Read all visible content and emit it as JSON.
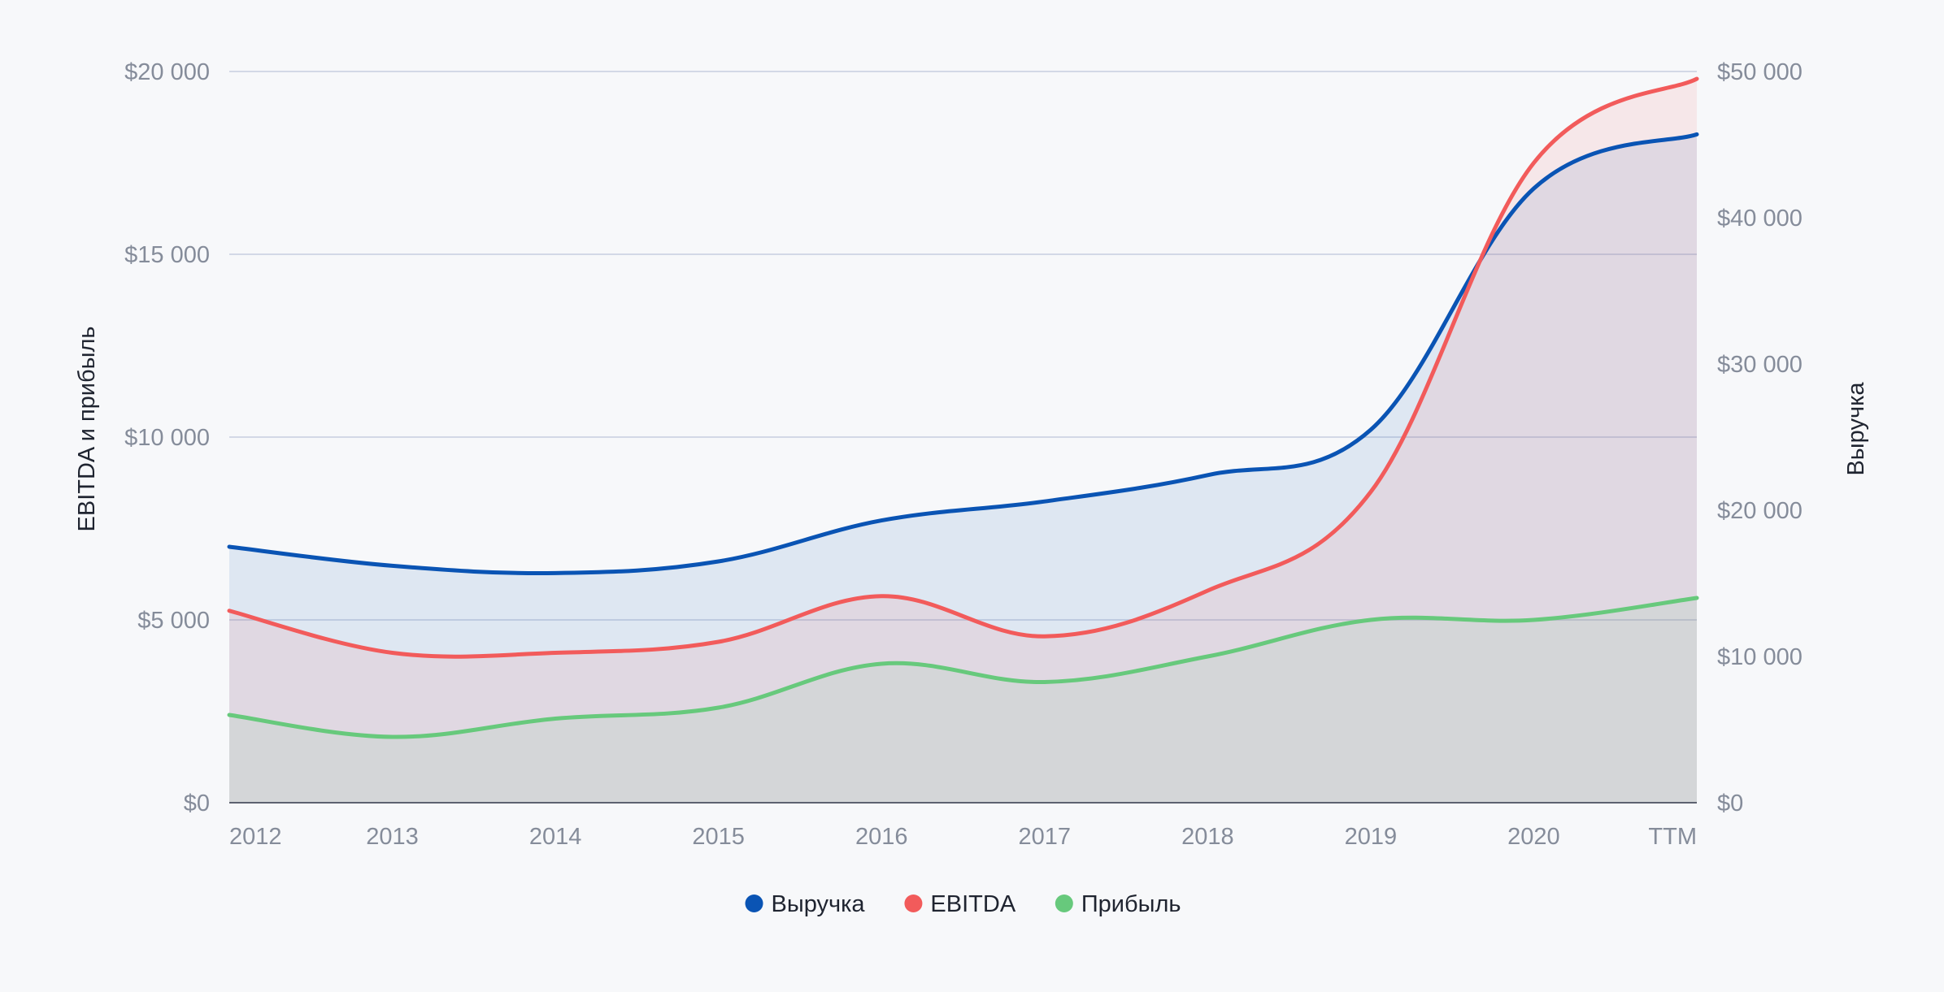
{
  "chart_data": {
    "type": "area",
    "x": [
      "2012",
      "2013",
      "2014",
      "2015",
      "2016",
      "2017",
      "2018",
      "2019",
      "2020",
      "TTM"
    ],
    "y_left": {
      "label": "EBITDA и прибыль",
      "min": 0,
      "max": 20000,
      "ticks": [
        0,
        5000,
        10000,
        15000,
        20000
      ],
      "tick_labels": [
        "$0",
        "$5 000",
        "$10 000",
        "$15 000",
        "$20 000"
      ]
    },
    "y_right": {
      "label": "Выручка",
      "min": 0,
      "max": 50000,
      "ticks": [
        0,
        10000,
        20000,
        30000,
        40000,
        50000
      ],
      "tick_labels": [
        "$0",
        "$10 000",
        "$20 000",
        "$30 000",
        "$40 000",
        "$50 000"
      ]
    },
    "series": [
      {
        "name": "Выручка",
        "axis": "right",
        "color": "#0a54b4",
        "fill": "#0a54b4",
        "values": [
          17500,
          16200,
          15700,
          16500,
          19300,
          20600,
          22400,
          25500,
          42000,
          45700
        ]
      },
      {
        "name": "EBITDA",
        "axis": "left",
        "color": "#f25b5b",
        "fill": "#f25b5b",
        "values": [
          5250,
          4100,
          4100,
          4400,
          5650,
          4550,
          5800,
          8500,
          17500,
          19800
        ]
      },
      {
        "name": "Прибыль",
        "axis": "left",
        "color": "#67c97c",
        "fill": "#67c97c",
        "values": [
          2400,
          1800,
          2300,
          2600,
          3800,
          3300,
          4000,
          5000,
          5000,
          5600
        ]
      }
    ],
    "grid": true,
    "legend": {
      "position": "bottom"
    }
  }
}
